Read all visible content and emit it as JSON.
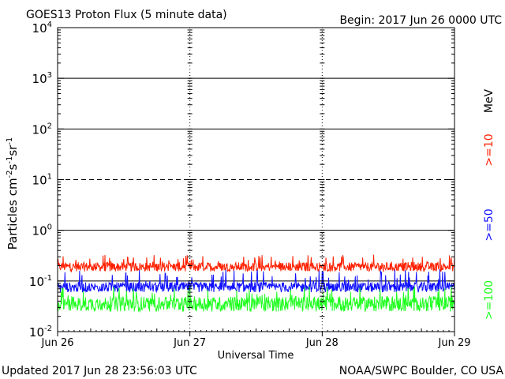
{
  "chart_data": {
    "type": "line",
    "title": "GOES13 Proton Flux (5 minute data)",
    "begin_label": "Begin: 2017 Jun 26 0000 UTC",
    "xlabel": "Universal Time",
    "ylabel": "Particles cm",
    "ylabel_sup1": "-2",
    "ylabel_mid1": "s",
    "ylabel_sup2": "-1",
    "ylabel_mid2": "sr",
    "ylabel_sup3": "-1",
    "y_scale": "log",
    "ylim": [
      0.01,
      10000
    ],
    "xlim": [
      0,
      3
    ],
    "x_ticks": [
      {
        "value": 0,
        "label": "Jun 26"
      },
      {
        "value": 1,
        "label": "Jun 27"
      },
      {
        "value": 2,
        "label": "Jun 28"
      },
      {
        "value": 3,
        "label": "Jun 29"
      }
    ],
    "y_ticks": [
      {
        "value": 0.01,
        "base": "10",
        "exp": "-2"
      },
      {
        "value": 0.1,
        "base": "10",
        "exp": "-1"
      },
      {
        "value": 1,
        "base": "10",
        "exp": "0"
      },
      {
        "value": 10,
        "base": "10",
        "exp": "1"
      },
      {
        "value": 100,
        "base": "10",
        "exp": "2"
      },
      {
        "value": 1000,
        "base": "10",
        "exp": "3"
      },
      {
        "value": 10000,
        "base": "10",
        "exp": "4"
      }
    ],
    "threshold_lines": [
      {
        "value": 1000,
        "style": "solid"
      },
      {
        "value": 100,
        "style": "solid"
      },
      {
        "value": 10,
        "style": "dashed"
      },
      {
        "value": 1,
        "style": "solid"
      },
      {
        "value": 0.1,
        "style": "solid"
      }
    ],
    "units_label": "MeV",
    "series": [
      {
        "name": ">=10",
        "color": "#ff2000",
        "base": 0.19,
        "spread": 0.18,
        "spike_max": 0.34,
        "values_range": [
          0.13,
          0.33
        ]
      },
      {
        "name": ">=50",
        "color": "#1010ff",
        "base": 0.075,
        "spread": 0.2,
        "spike_max": 0.17,
        "values_range": [
          0.055,
          0.17
        ]
      },
      {
        "name": ">=100",
        "color": "#20ff20",
        "base": 0.035,
        "spread": 0.3,
        "spike_max": 0.08,
        "values_range": [
          0.025,
          0.08
        ]
      }
    ]
  },
  "footer": {
    "updated": "Updated 2017 Jun 28 23:56:03 UTC",
    "credit": "NOAA/SWPC Boulder, CO USA"
  }
}
